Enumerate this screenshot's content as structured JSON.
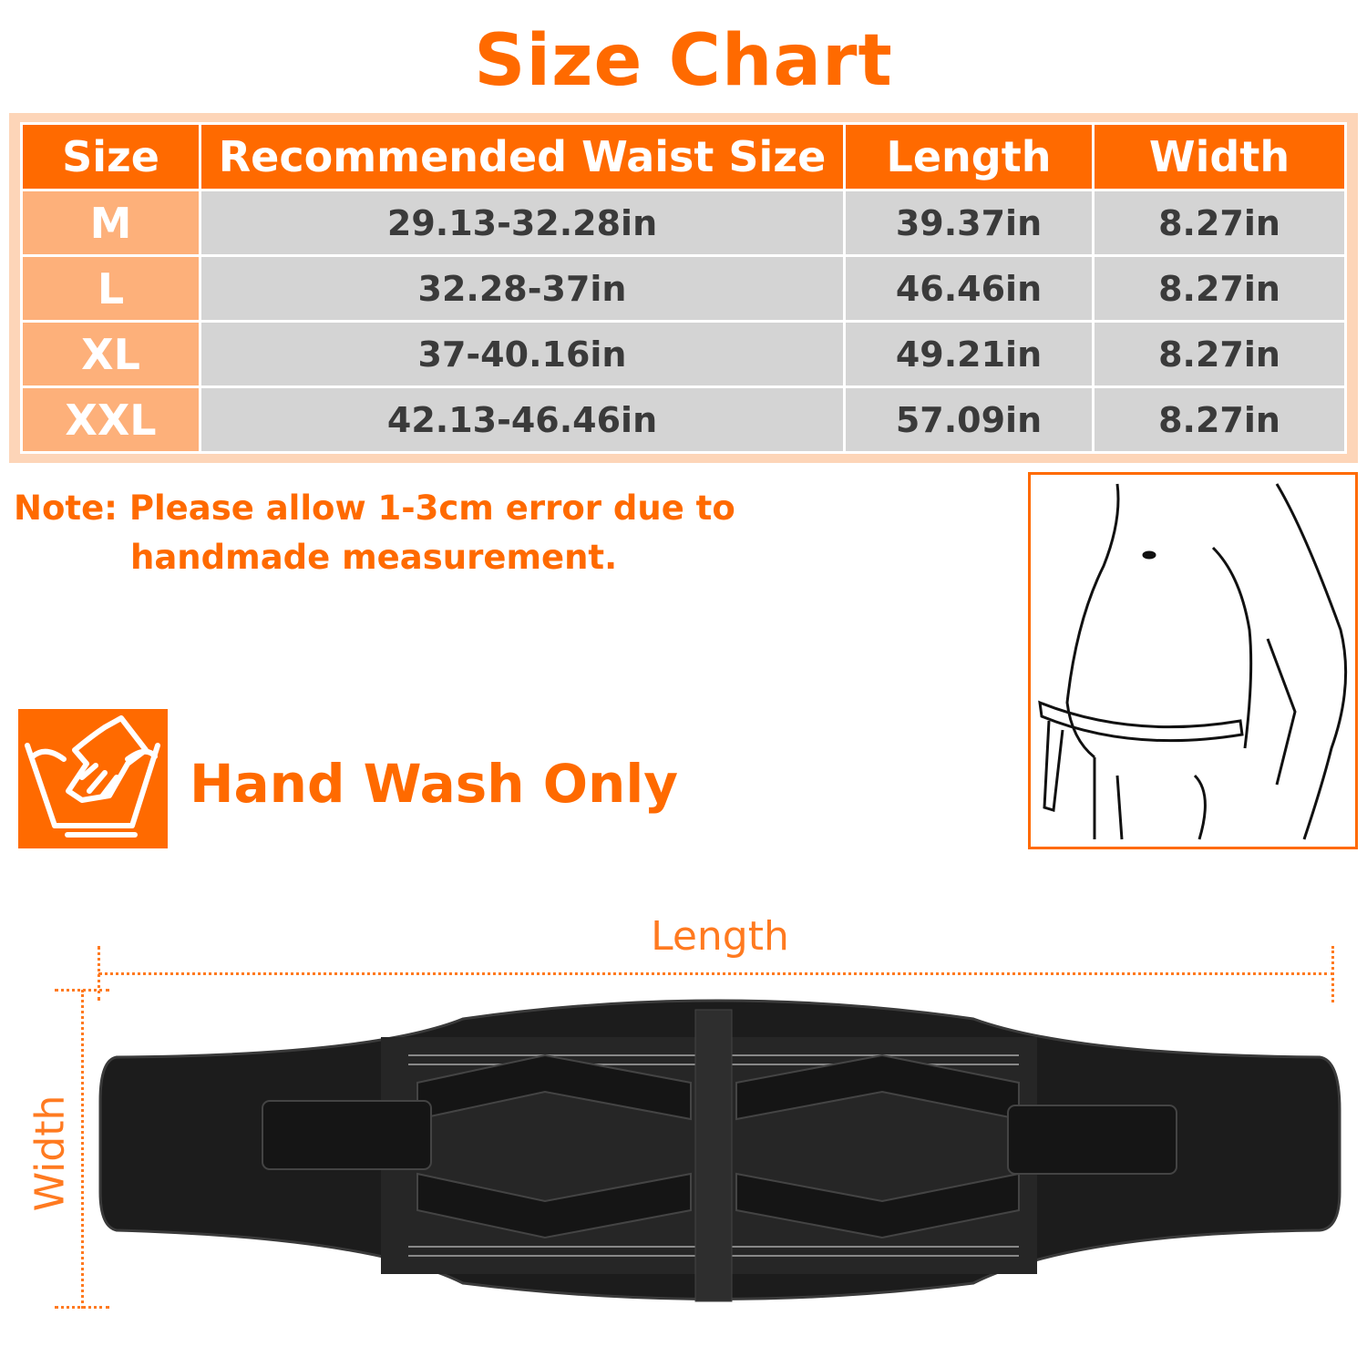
{
  "title": "Size Chart",
  "table": {
    "headers": [
      "Size",
      "Recommended Waist Size",
      "Length",
      "Width"
    ],
    "rows": [
      [
        "M",
        "29.13-32.28in",
        "39.37in",
        "8.27in"
      ],
      [
        "L",
        "32.28-37in",
        "46.46in",
        "8.27in"
      ],
      [
        "XL",
        "37-40.16in",
        "49.21in",
        "8.27in"
      ],
      [
        "XXL",
        "42.13-46.46in",
        "57.09in",
        "8.27in"
      ]
    ]
  },
  "note": {
    "line1": "Note: Please allow 1-3cm error due to",
    "line2": "handmade measurement."
  },
  "care": {
    "icon": "hand-wash-icon",
    "label": "Hand Wash Only"
  },
  "diagram": {
    "length_label": "Length",
    "width_label": "Width"
  },
  "colors": {
    "accent": "#ff6a00",
    "header_bg": "#ff6a00",
    "size_cell": "#fdb07a",
    "body_cell": "#d4d4d4",
    "frame": "#fdd5b8"
  }
}
